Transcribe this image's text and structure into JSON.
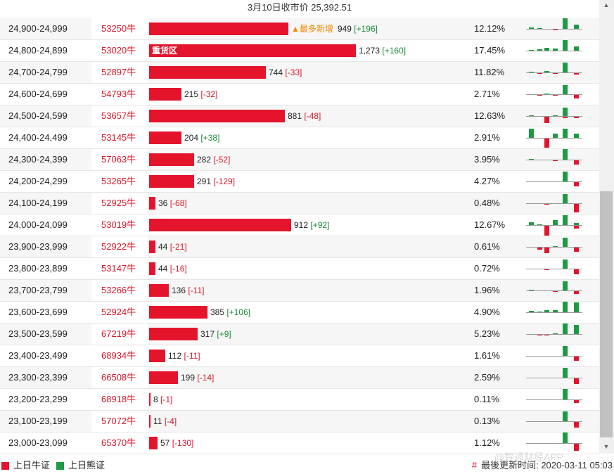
{
  "header": {
    "title": "3月10日收市价 25,392.51"
  },
  "colors": {
    "bull": "#e3142c",
    "bear": "#1e9a45",
    "accent": "#f08a00"
  },
  "rows": [
    {
      "range": "24,900-24,999",
      "code": "53250牛",
      "bar_pct": 0.43,
      "amount": "949",
      "change": "[+196]",
      "dir": "up",
      "pct": "12.12%",
      "tag": "▲最多新增",
      "bar_label": "",
      "spark": [
        2,
        1,
        0,
        -1,
        2,
        16,
        0,
        6
      ]
    },
    {
      "range": "24,800-24,899",
      "code": "53020牛",
      "bar_pct": 0.64,
      "amount": "1,273",
      "change": "[+160]",
      "dir": "up",
      "pct": "17.45%",
      "tag": "",
      "bar_label": "重货区",
      "spark": [
        1,
        2,
        4,
        3,
        5,
        16,
        0,
        6
      ]
    },
    {
      "range": "24,700-24,799",
      "code": "52897牛",
      "bar_pct": 0.36,
      "amount": "744",
      "change": "[-33]",
      "dir": "down",
      "pct": "11.82%",
      "tag": "",
      "bar_label": "",
      "spark": [
        1,
        -1,
        2,
        -1,
        2,
        14,
        0,
        -2
      ]
    },
    {
      "range": "24,600-24,699",
      "code": "54793牛",
      "bar_pct": 0.1,
      "amount": "215",
      "change": "[-32]",
      "dir": "down",
      "pct": "2.71%",
      "tag": "",
      "bar_label": "",
      "spark": [
        0,
        -1,
        1,
        -1,
        1,
        13,
        0,
        -5
      ]
    },
    {
      "range": "24,500-24,599",
      "code": "53657牛",
      "bar_pct": 0.42,
      "amount": "881",
      "change": "[-48]",
      "dir": "down",
      "pct": "12.63%",
      "tag": "",
      "bar_label": "",
      "spark": [
        1,
        0,
        -9,
        1,
        -2,
        12,
        0,
        -2
      ]
    },
    {
      "range": "24,400-24,499",
      "code": "53145牛",
      "bar_pct": 0.1,
      "amount": "204",
      "change": "[+38]",
      "dir": "up",
      "pct": "2.91%",
      "tag": "",
      "bar_label": "",
      "spark": [
        13,
        0,
        -13,
        6,
        8,
        13,
        0,
        6
      ]
    },
    {
      "range": "24,300-24,399",
      "code": "57063牛",
      "bar_pct": 0.14,
      "amount": "282",
      "change": "[-52]",
      "dir": "down",
      "pct": "3.95%",
      "tag": "",
      "bar_label": "",
      "spark": [
        1,
        0,
        0,
        -1,
        1,
        15,
        0,
        -6
      ]
    },
    {
      "range": "24,200-24,299",
      "code": "53265牛",
      "bar_pct": 0.14,
      "amount": "291",
      "change": "[-129]",
      "dir": "down",
      "pct": "4.27%",
      "tag": "",
      "bar_label": "",
      "spark": [
        0,
        0,
        0,
        0,
        1,
        14,
        0,
        -6
      ]
    },
    {
      "range": "24,100-24,199",
      "code": "52925牛",
      "bar_pct": 0.02,
      "amount": "36",
      "change": "[-68]",
      "dir": "down",
      "pct": "0.48%",
      "tag": "",
      "bar_label": "",
      "spark": [
        0,
        0,
        -1,
        0,
        1,
        13,
        0,
        -12
      ]
    },
    {
      "range": "24,000-24,099",
      "code": "53019牛",
      "bar_pct": 0.44,
      "amount": "912",
      "change": "[+92]",
      "dir": "up",
      "pct": "12.67%",
      "tag": "",
      "bar_label": "",
      "spark": [
        4,
        1,
        -14,
        7,
        5,
        14,
        -4,
        3
      ]
    },
    {
      "range": "23,900-23,999",
      "code": "52922牛",
      "bar_pct": 0.02,
      "amount": "44",
      "change": "[-21]",
      "dir": "down",
      "pct": "0.61%",
      "tag": "",
      "bar_label": "",
      "spark": [
        0,
        -3,
        -8,
        1,
        3,
        13,
        0,
        -6
      ]
    },
    {
      "range": "23,800-23,899",
      "code": "53147牛",
      "bar_pct": 0.02,
      "amount": "44",
      "change": "[-16]",
      "dir": "down",
      "pct": "0.72%",
      "tag": "",
      "bar_label": "",
      "spark": [
        0,
        0,
        -1,
        0,
        1,
        13,
        0,
        -7
      ]
    },
    {
      "range": "23,700-23,799",
      "code": "53266牛",
      "bar_pct": 0.06,
      "amount": "136",
      "change": "[-11]",
      "dir": "down",
      "pct": "1.96%",
      "tag": "",
      "bar_label": "",
      "spark": [
        1,
        0,
        0,
        -1,
        1,
        13,
        0,
        -4
      ]
    },
    {
      "range": "23,600-23,699",
      "code": "52924牛",
      "bar_pct": 0.18,
      "amount": "385",
      "change": "[+106]",
      "dir": "up",
      "pct": "4.90%",
      "tag": "",
      "bar_label": "",
      "spark": [
        2,
        1,
        3,
        3,
        14,
        15,
        13,
        14
      ]
    },
    {
      "range": "23,500-23,599",
      "code": "67219牛",
      "bar_pct": 0.15,
      "amount": "317",
      "change": "[+9]",
      "dir": "up",
      "pct": "5.23%",
      "tag": "",
      "bar_label": "",
      "spark": [
        0,
        -1,
        -1,
        1,
        8,
        16,
        13,
        2
      ]
    },
    {
      "range": "23,400-23,499",
      "code": "68934牛",
      "bar_pct": 0.05,
      "amount": "112",
      "change": "[-11]",
      "dir": "down",
      "pct": "1.61%",
      "tag": "",
      "bar_label": "",
      "spark": [
        0,
        0,
        0,
        0,
        0,
        14,
        0,
        -6
      ]
    },
    {
      "range": "23,300-23,399",
      "code": "66508牛",
      "bar_pct": 0.09,
      "amount": "199",
      "change": "[-14]",
      "dir": "down",
      "pct": "2.59%",
      "tag": "",
      "bar_label": "",
      "spark": [
        0,
        0,
        0,
        0,
        1,
        14,
        0,
        -8
      ]
    },
    {
      "range": "23,200-23,299",
      "code": "68918牛",
      "bar_pct": 0.004,
      "amount": "8",
      "change": "[-1]",
      "dir": "down",
      "pct": "0.11%",
      "tag": "",
      "bar_label": "",
      "spark": [
        0,
        0,
        0,
        0,
        0,
        15,
        0,
        -4
      ]
    },
    {
      "range": "23,100-23,199",
      "code": "57072牛",
      "bar_pct": 0.005,
      "amount": "11",
      "change": "[-4]",
      "dir": "down",
      "pct": "0.13%",
      "tag": "",
      "bar_label": "",
      "spark": [
        0,
        0,
        0,
        0,
        3,
        14,
        -3,
        -8
      ]
    },
    {
      "range": "23,000-23,099",
      "code": "65370牛",
      "bar_pct": 0.027,
      "amount": "57",
      "change": "[-130]",
      "dir": "down",
      "pct": "1.12%",
      "tag": "",
      "bar_label": "",
      "spark": [
        0,
        0,
        0,
        0,
        2,
        15,
        0,
        -10
      ]
    }
  ],
  "footer": {
    "legend_bull": "上日牛证",
    "legend_bear": "上日熊证",
    "update_hash": "#",
    "update_label": "最後更新时间: 2020-03-11 05:03",
    "watermark": "@智通财经APP"
  },
  "scrollbar": {
    "up_icon": "▲",
    "down_icon": "▼"
  }
}
